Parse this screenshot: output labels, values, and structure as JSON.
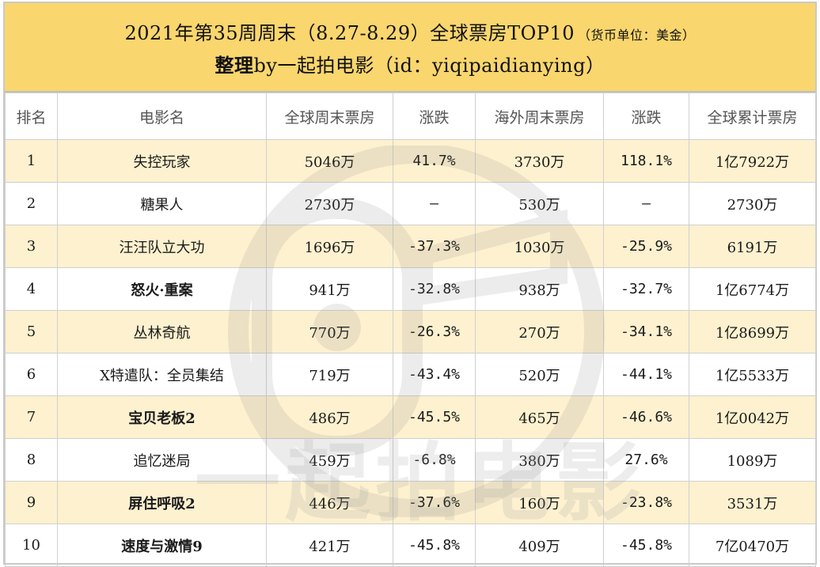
{
  "title": {
    "line1": "2021年第35周周末（8.27-8.29）全球票房TOP10",
    "unit": "（货币单位：美金）",
    "line2_bold": "整理",
    "line2_rest": "by一起拍电影（id：yiqipaidianying）"
  },
  "headers": [
    "排名",
    "电影名",
    "全球周末票房",
    "涨跌",
    "海外周末票房",
    "涨跌",
    "全球累计票房"
  ],
  "rows": [
    {
      "rank": "1",
      "film": "失控玩家",
      "global_weekend": "5046万",
      "global_change": "41.7%",
      "overseas_weekend": "3730万",
      "overseas_change": "118.1%",
      "cumulative": "1亿7922万"
    },
    {
      "rank": "2",
      "film": "糖果人",
      "global_weekend": "2730万",
      "global_change": "–",
      "overseas_weekend": "530万",
      "overseas_change": "–",
      "cumulative": "2730万"
    },
    {
      "rank": "3",
      "film": "汪汪队立大功",
      "global_weekend": "1696万",
      "global_change": "-37.3%",
      "overseas_weekend": "1030万",
      "overseas_change": "-25.9%",
      "cumulative": "6191万"
    },
    {
      "rank": "4",
      "film": "怒火·重案",
      "global_weekend": "941万",
      "global_change": "-32.8%",
      "overseas_weekend": "938万",
      "overseas_change": "-32.7%",
      "cumulative": "1亿6774万"
    },
    {
      "rank": "5",
      "film": "丛林奇航",
      "global_weekend": "770万",
      "global_change": "-26.3%",
      "overseas_weekend": "270万",
      "overseas_change": "-34.1%",
      "cumulative": "1亿8699万"
    },
    {
      "rank": "6",
      "film": "X特遣队：全员集结",
      "global_weekend": "719万",
      "global_change": "-43.4%",
      "overseas_weekend": "520万",
      "overseas_change": "-44.1%",
      "cumulative": "1亿5533万"
    },
    {
      "rank": "7",
      "film": "宝贝老板2",
      "global_weekend": "486万",
      "global_change": "-45.5%",
      "overseas_weekend": "465万",
      "overseas_change": "-46.6%",
      "cumulative": "1亿0042万"
    },
    {
      "rank": "8",
      "film": "追忆迷局",
      "global_weekend": "459万",
      "global_change": "-6.8%",
      "overseas_weekend": "380万",
      "overseas_change": "27.6%",
      "cumulative": "1089万"
    },
    {
      "rank": "9",
      "film": "屏住呼吸2",
      "global_weekend": "446万",
      "global_change": "-37.6%",
      "overseas_weekend": "160万",
      "overseas_change": "-23.8%",
      "cumulative": "3531万"
    },
    {
      "rank": "10",
      "film": "速度与激情9",
      "global_weekend": "421万",
      "global_change": "-45.8%",
      "overseas_weekend": "409万",
      "overseas_change": "-45.8%",
      "cumulative": "7亿0470万"
    }
  ],
  "watermark": {
    "text": "一起拍电影",
    "icon": "camera-logo-icon"
  },
  "colors": {
    "title_band": "#f9d66e",
    "highlight_row": "#fdf1cf",
    "increase": "#2aa9d6",
    "decrease": "#e53935"
  }
}
